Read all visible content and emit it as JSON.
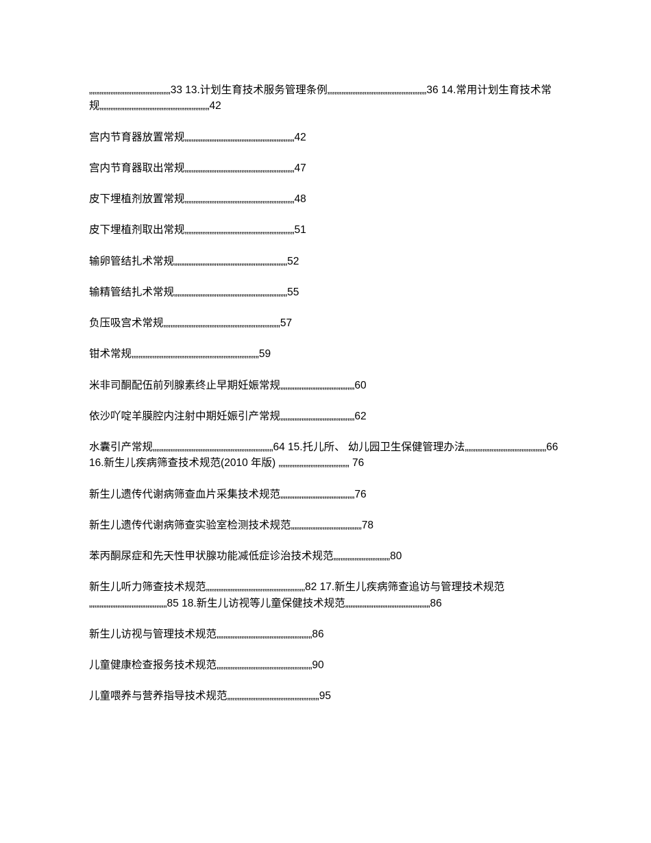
{
  "background_color": "#ffffff",
  "text_color": "#000000",
  "font_size_pt": 12,
  "entries": [
    {
      "text": "„„„„„„„„„„„„„„„„„„„„„„„33 13.计划生育技术服务管理条例„„„„„„„„„„„„„„„„„„„„„„„„„„„„36 14.常用计划生育技术常规„„„„„„„„„„„„„„„„„„„„„„„„„„„„„„„42"
    },
    {
      "text": "宫内节育器放置常规„„„„„„„„„„„„„„„„„„„„„„„„„„„„„„„42"
    },
    {
      "text": "宫内节育器取出常规„„„„„„„„„„„„„„„„„„„„„„„„„„„„„„„47"
    },
    {
      "text": "皮下埋植剂放置常规„„„„„„„„„„„„„„„„„„„„„„„„„„„„„„„48"
    },
    {
      "text": "皮下埋植剂取出常规„„„„„„„„„„„„„„„„„„„„„„„„„„„„„„„51"
    },
    {
      "text": "输卵管结扎术常规„„„„„„„„„„„„„„„„„„„„„„„„„„„„„„„„52"
    },
    {
      "text": "输精管结扎术常规„„„„„„„„„„„„„„„„„„„„„„„„„„„„„„„„55"
    },
    {
      "text": "负压吸宫术常规„„„„„„„„„„„„„„„„„„„„„„„„„„„„„„„„„57"
    },
    {
      "text": "钳术常规„„„„„„„„„„„„„„„„„„„„„„„„„„„„„„„„„„„„59"
    },
    {
      "text": "米非司酮配伍前列腺素终止早期妊娠常规„„„„„„„„„„„„„„„„„„„„„60"
    },
    {
      "text": "依沙吖啶羊膜腔内注射中期妊娠引产常规„„„„„„„„„„„„„„„„„„„„„62"
    },
    {
      "text": "水囊引产常规„„„„„„„„„„„„„„„„„„„„„„„„„„„„„„„„„„64 15.托儿所、 幼儿园卫生保健管理办法„„„„„„„„„„„„„„„„„„„„„„„66 16.新生儿疾病筛查技术规范(2010 年版) „„„„„„„„„„„„„„„„„„„„ 76"
    },
    {
      "text": "新生儿遗传代谢病筛查血片采集技术规范„„„„„„„„„„„„„„„„„„„„„76"
    },
    {
      "text": "新生儿遗传代谢病筛查实验室检测技术规范„„„„„„„„„„„„„„„„„„„„78"
    },
    {
      "text": "苯丙酮尿症和先天性甲状腺功能减低症诊治技术规范„„„„„„„„„„„„„„„„80"
    },
    {
      "text": "新生儿听力筛查技术规范„„„„„„„„„„„„„„„„„„„„„„„„„„„„82 17.新生儿疾病筛查追访与管理技术规范„„„„„„„„„„„„„„„„„„„„„„85 18.新生儿访视等儿童保健技术规范„„„„„„„„„„„„„„„„„„„„„„„„86"
    },
    {
      "text": "新生儿访视与管理技术规范„„„„„„„„„„„„„„„„„„„„„„„„„„„86"
    },
    {
      "text": "儿童健康检查报务技术规范„„„„„„„„„„„„„„„„„„„„„„„„„„„90"
    },
    {
      "text": "儿童喂养与营养指导技术规范„„„„„„„„„„„„„„„„„„„„„„„„„„95"
    }
  ]
}
